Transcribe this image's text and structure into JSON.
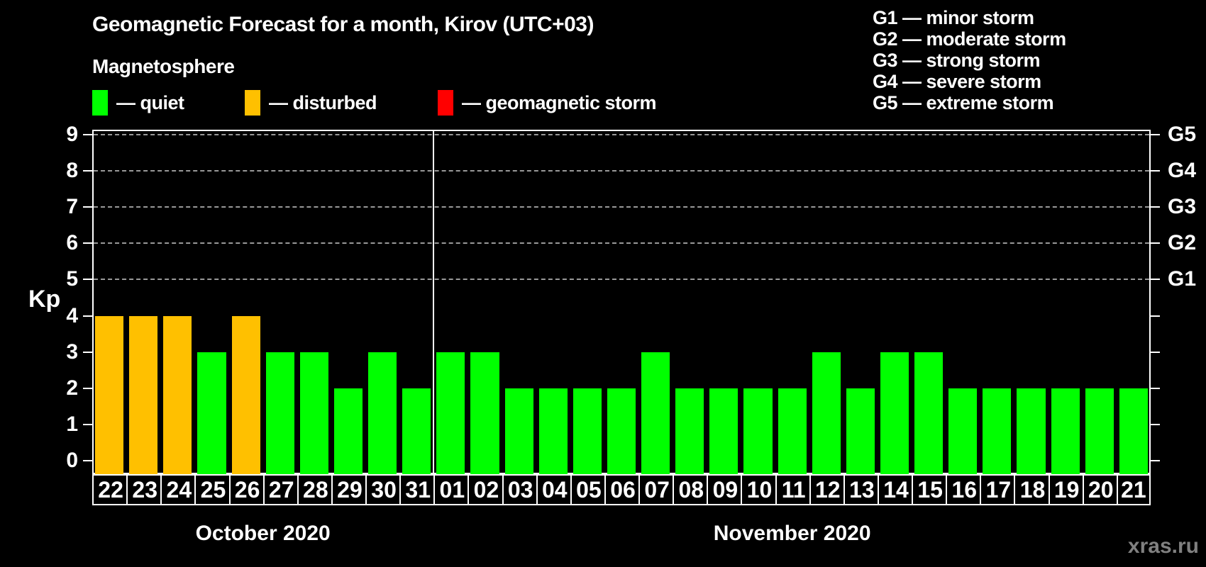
{
  "title": "Geomagnetic Forecast for a month, Kirov (UTC+03)",
  "subtitle": "Magnetosphere",
  "y_axis_label": "Kp",
  "watermark": "xras.ru",
  "legend": {
    "items": [
      {
        "name": "quiet",
        "label": "— quiet",
        "color": "#00ff00"
      },
      {
        "name": "disturbed",
        "label": "— disturbed",
        "color": "#ffc000"
      },
      {
        "name": "storm",
        "label": "— geomagnetic storm",
        "color": "#ff0000"
      }
    ]
  },
  "g_legend": {
    "items": [
      "G1 — minor storm",
      "G2 — moderate storm",
      "G3 — strong storm",
      "G4 — severe storm",
      "G5 — extreme storm"
    ]
  },
  "chart_data": {
    "type": "bar",
    "title": "Geomagnetic Forecast for a month, Kirov (UTC+03)",
    "ylabel": "Kp",
    "ylim": [
      0,
      9
    ],
    "y_ticks": [
      0,
      1,
      2,
      3,
      4,
      5,
      6,
      7,
      8,
      9
    ],
    "gridlines_kp": [
      5,
      6,
      7,
      8,
      9
    ],
    "grid": "horizontal dashed lines at Kp 5..9 only",
    "legend_position": "top-left",
    "right_axis": [
      {
        "label": "G1",
        "kp": 5
      },
      {
        "label": "G2",
        "kp": 6
      },
      {
        "label": "G3",
        "kp": 7
      },
      {
        "label": "G4",
        "kp": 8
      },
      {
        "label": "G5",
        "kp": 9
      }
    ],
    "status_colors": {
      "quiet": "#00ff00",
      "disturbed": "#ffc000",
      "storm": "#ff0000"
    },
    "groups": [
      {
        "month_label": "October 2020",
        "days": [
          "22",
          "23",
          "24",
          "25",
          "26",
          "27",
          "28",
          "29",
          "30",
          "31"
        ],
        "values": [
          4,
          4,
          4,
          3,
          4,
          3,
          3,
          2,
          3,
          2
        ],
        "status": [
          "disturbed",
          "disturbed",
          "disturbed",
          "quiet",
          "disturbed",
          "quiet",
          "quiet",
          "quiet",
          "quiet",
          "quiet"
        ]
      },
      {
        "month_label": "November 2020",
        "days": [
          "01",
          "02",
          "03",
          "04",
          "05",
          "06",
          "07",
          "08",
          "09",
          "10",
          "11",
          "12",
          "13",
          "14",
          "15",
          "16",
          "17",
          "18",
          "19",
          "20",
          "21"
        ],
        "values": [
          3,
          3,
          2,
          2,
          2,
          2,
          3,
          2,
          2,
          2,
          2,
          3,
          2,
          3,
          3,
          2,
          2,
          2,
          2,
          2,
          2
        ],
        "status": [
          "quiet",
          "quiet",
          "quiet",
          "quiet",
          "quiet",
          "quiet",
          "quiet",
          "quiet",
          "quiet",
          "quiet",
          "quiet",
          "quiet",
          "quiet",
          "quiet",
          "quiet",
          "quiet",
          "quiet",
          "quiet",
          "quiet",
          "quiet",
          "quiet"
        ]
      }
    ]
  }
}
